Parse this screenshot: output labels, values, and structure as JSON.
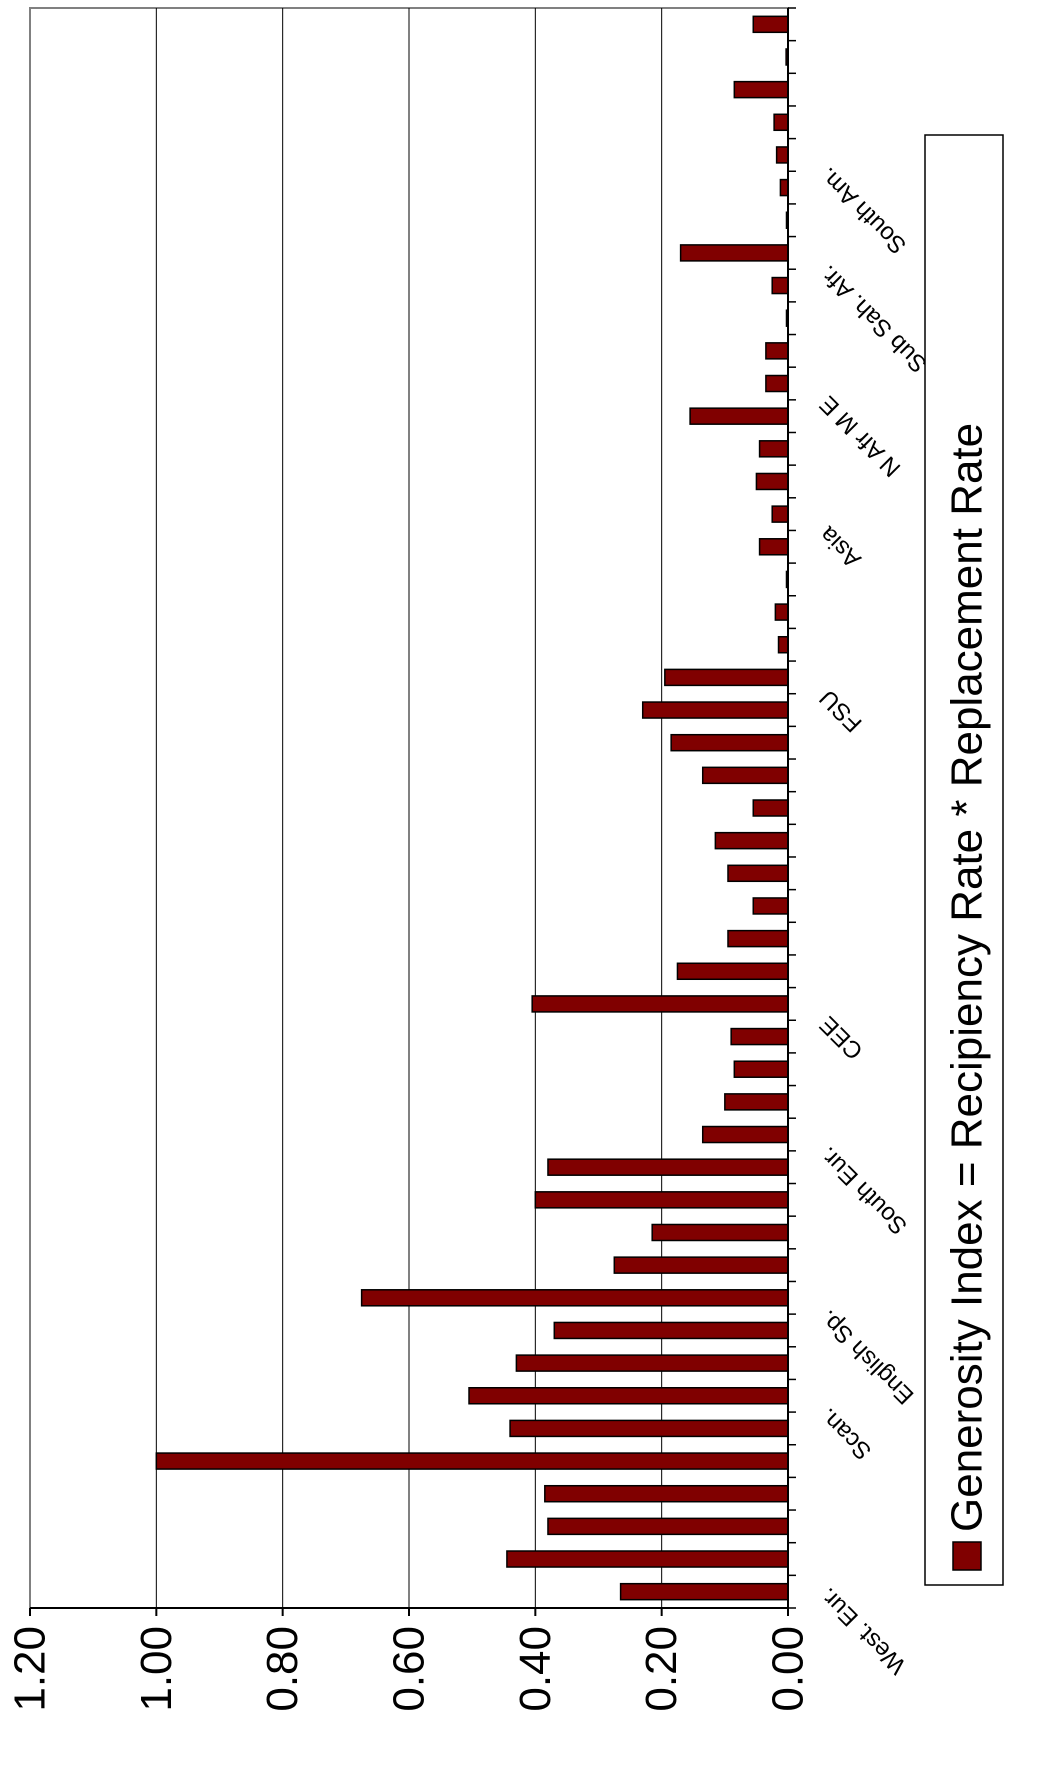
{
  "chart_data": {
    "type": "bar",
    "orientation": "horizontal",
    "title": "",
    "xlabel": "",
    "ylabel": "",
    "xlim": [
      0,
      1.2
    ],
    "grid": true,
    "legend": {
      "placement": "right",
      "entries": [
        "Generosity Index = Recipiency Rate * Replacement Rate"
      ]
    },
    "tick_labels": [
      "0.00",
      "0.20",
      "0.40",
      "0.60",
      "0.80",
      "1.00",
      "1.20"
    ],
    "tick_values": [
      0,
      0.2,
      0.4,
      0.6,
      0.8,
      1.0,
      1.2
    ],
    "group_labels": [
      {
        "label": "West. Eur.",
        "index": 0
      },
      {
        "label": "Scan.",
        "index": 5.5
      },
      {
        "label": "English Sp.",
        "index": 8.5
      },
      {
        "label": "South Eur.",
        "index": 13.5
      },
      {
        "label": "CEE",
        "index": 17.5
      },
      {
        "label": "FSU",
        "index": 27.5
      },
      {
        "label": "Asia",
        "index": 32.5
      },
      {
        "label": "N Afr M E",
        "index": 36.5
      },
      {
        "label": "Sub Sah. Afr.",
        "index": 40.5
      },
      {
        "label": "South Am.",
        "index": 43.5
      }
    ],
    "series": [
      {
        "name": "Generosity Index = Recipiency Rate * Replacement Rate",
        "color": "#800000",
        "values": [
          0.265,
          0.445,
          0.38,
          0.385,
          1.0,
          0.44,
          0.505,
          0.43,
          0.37,
          0.675,
          0.275,
          0.215,
          0.4,
          0.38,
          0.135,
          0.1,
          0.085,
          0.09,
          0.405,
          0.175,
          0.095,
          0.055,
          0.095,
          0.115,
          0.055,
          0.135,
          0.185,
          0.23,
          0.195,
          0.015,
          0.02,
          0.002,
          0.045,
          0.025,
          0.05,
          0.045,
          0.155,
          0.035,
          0.035,
          0.002,
          0.025,
          0.17,
          0.002,
          0.012,
          0.018,
          0.022,
          0.085,
          0.003,
          0.055
        ]
      }
    ]
  }
}
